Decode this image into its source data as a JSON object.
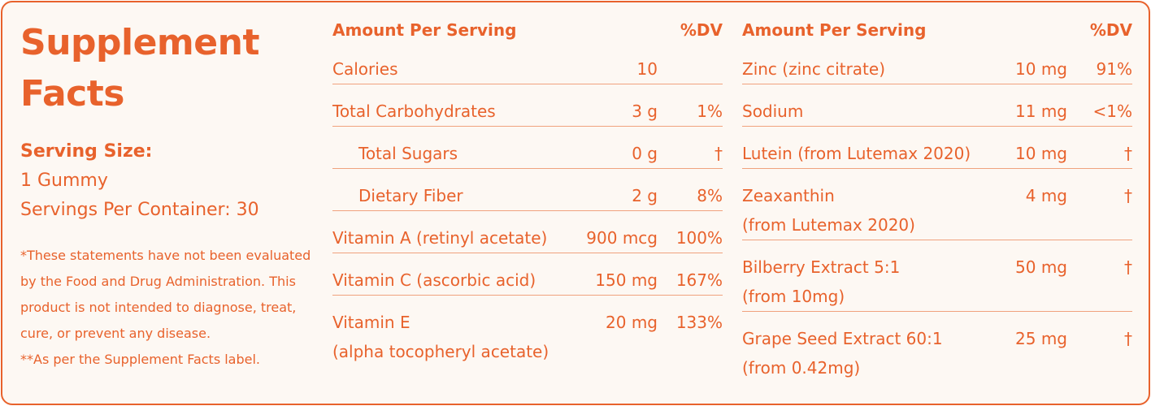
{
  "panel": {
    "title": "Supplement Facts",
    "serving_size_label": "Serving Size:",
    "serving_size": "1 Gummy",
    "servings_per_container": "Servings Per Container: 30",
    "notes": [
      "*These statements have not been evaluated by the Food and Drug Administration. This product is not intended to diagnose, treat, cure, or prevent any disease.",
      "**As per the Supplement Facts label."
    ]
  },
  "tables": [
    {
      "header": {
        "name": "Amount Per Serving",
        "dv": "%DV"
      },
      "rows": [
        {
          "name": "Calories",
          "amount": "10",
          "dv": ""
        },
        {
          "name": "Total Carbohydrates",
          "amount": "3 g",
          "dv": "1%"
        },
        {
          "name": "Total Sugars",
          "amount": "0 g",
          "dv": "†",
          "indent": true
        },
        {
          "name": "Dietary Fiber",
          "amount": "2 g",
          "dv": "8%",
          "indent": true
        },
        {
          "name": "Vitamin A (retinyl acetate)",
          "amount": "900 mcg",
          "dv": "100%"
        },
        {
          "name": "Vitamin C (ascorbic acid)",
          "amount": "150 mg",
          "dv": "167%"
        },
        {
          "name": "Vitamin E",
          "sub": "(alpha tocopheryl acetate)",
          "amount": "20 mg",
          "dv": "133%"
        }
      ]
    },
    {
      "header": {
        "name": "Amount Per Serving",
        "dv": "%DV"
      },
      "rows": [
        {
          "name": "Zinc (zinc citrate)",
          "amount": "10 mg",
          "dv": "91%"
        },
        {
          "name": "Sodium",
          "amount": "11 mg",
          "dv": "<1%"
        },
        {
          "name": "Lutein (from Lutemax 2020)",
          "amount": "10 mg",
          "dv": "†"
        },
        {
          "name": "Zeaxanthin",
          "sub": "(from Lutemax 2020)",
          "amount": "4 mg",
          "dv": "†"
        },
        {
          "name": "Bilberry Extract 5:1",
          "sub": "(from 10mg)",
          "amount": "50 mg",
          "dv": "†"
        },
        {
          "name": "Grape Seed Extract 60:1",
          "sub": "(from 0.42mg)",
          "amount": "25 mg",
          "dv": "†"
        }
      ]
    }
  ]
}
